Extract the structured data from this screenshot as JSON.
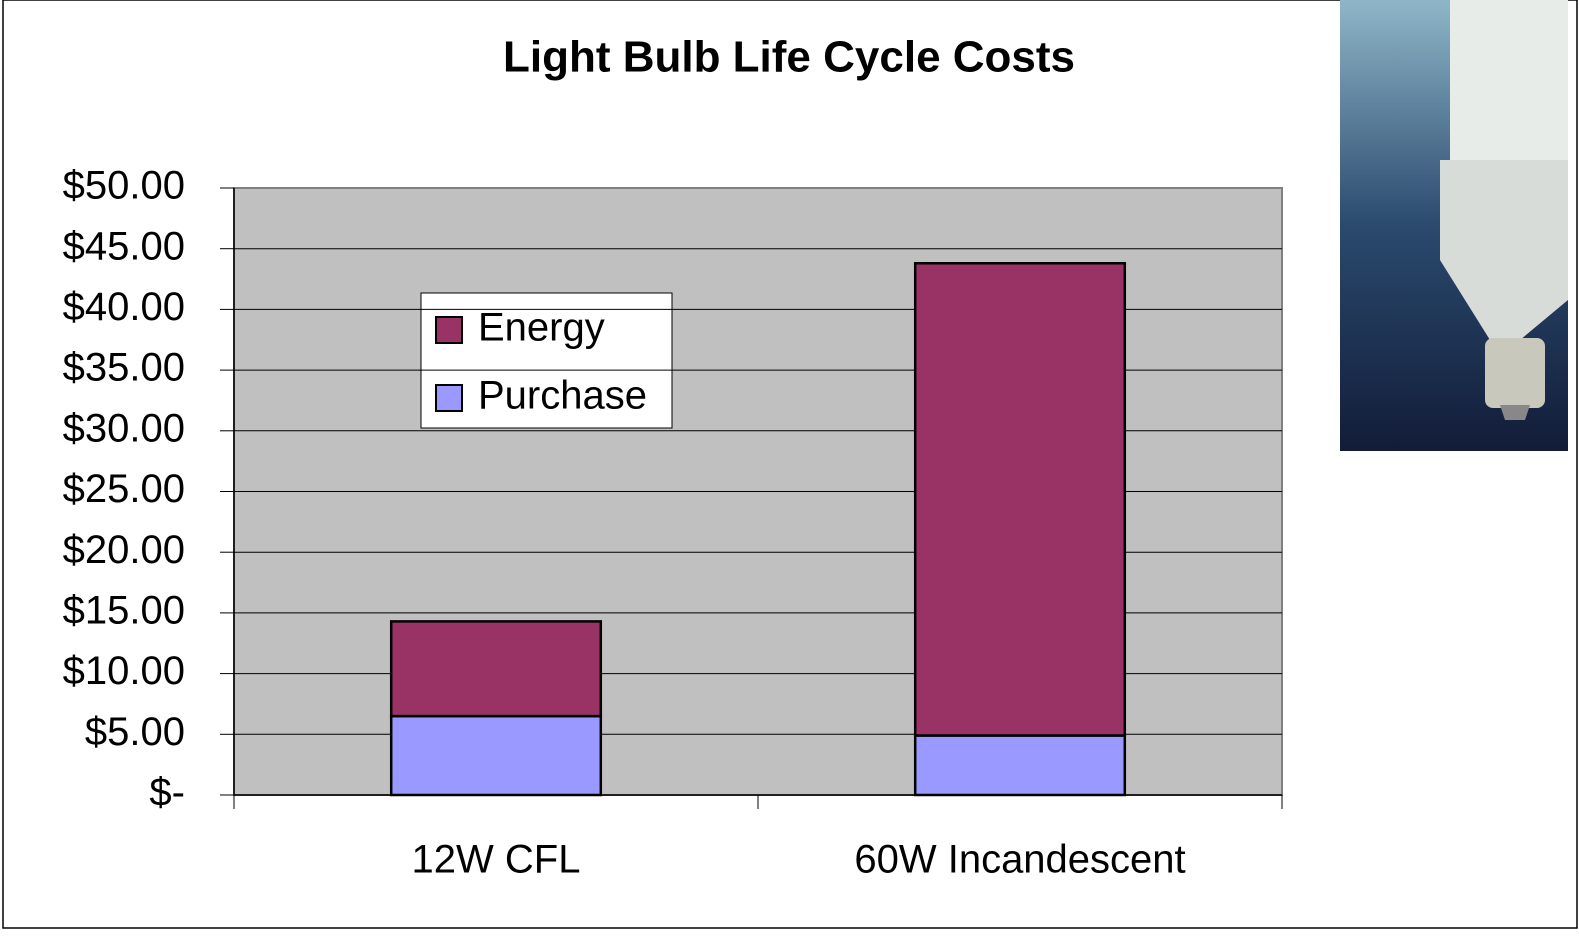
{
  "chart_data": {
    "type": "stacked-bar",
    "title": "Light Bulb Life Cycle Costs",
    "categories": [
      "12W CFL",
      "60W Incandescent"
    ],
    "series": [
      {
        "name": "Purchase",
        "color": "#9999ff",
        "values": [
          6.5,
          4.9
        ]
      },
      {
        "name": "Energy",
        "color": "#993366",
        "values": [
          7.8,
          38.9
        ]
      }
    ],
    "ylim": [
      0,
      50
    ],
    "yticks": [
      {
        "value": 0,
        "label": "$-"
      },
      {
        "value": 5,
        "label": "$5.00"
      },
      {
        "value": 10,
        "label": "$10.00"
      },
      {
        "value": 15,
        "label": "$15.00"
      },
      {
        "value": 20,
        "label": "$20.00"
      },
      {
        "value": 25,
        "label": "$25.00"
      },
      {
        "value": 30,
        "label": "$30.00"
      },
      {
        "value": 35,
        "label": "$35.00"
      },
      {
        "value": 40,
        "label": "$40.00"
      },
      {
        "value": 45,
        "label": "$45.00"
      },
      {
        "value": 50,
        "label": "$50.00"
      }
    ],
    "grid": true,
    "legend": "left"
  }
}
